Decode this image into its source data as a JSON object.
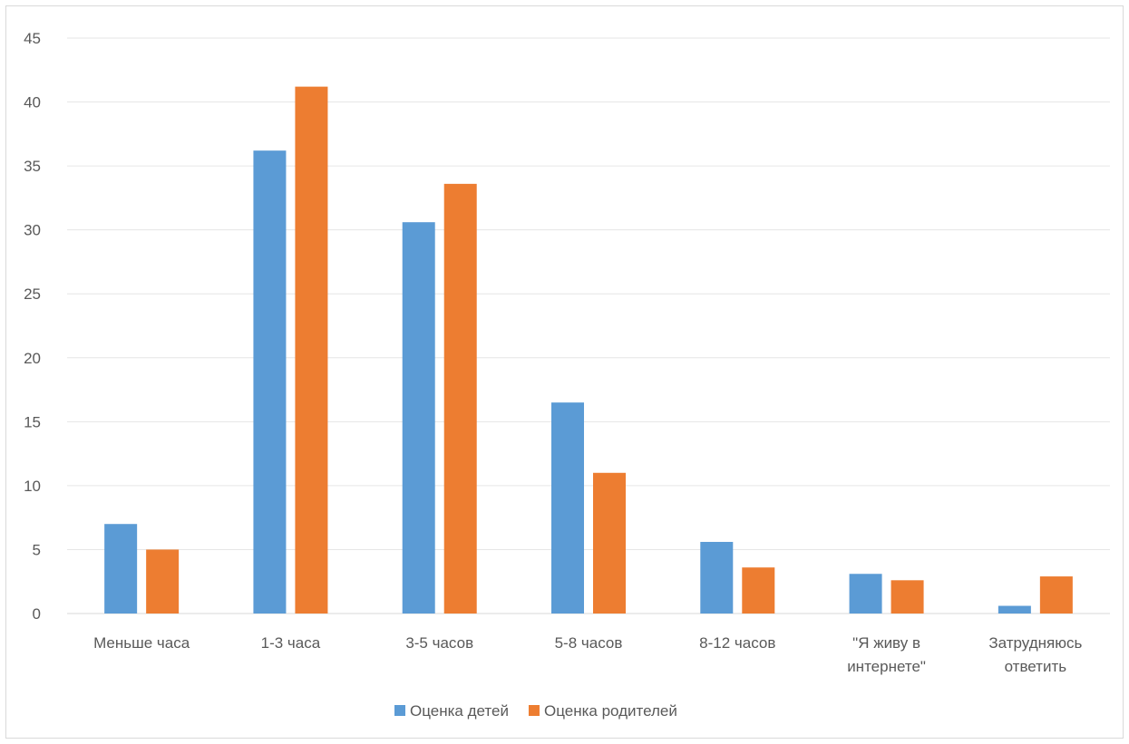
{
  "chart_data": {
    "type": "bar",
    "title": "",
    "xlabel": "",
    "ylabel": "",
    "categories": [
      [
        "Меньше часа"
      ],
      [
        "1-3 часа"
      ],
      [
        "3-5 часов"
      ],
      [
        "5-8 часов"
      ],
      [
        "8-12 часов"
      ],
      [
        "\"Я живу в",
        "интернете\""
      ],
      [
        "Затрудняюсь",
        "ответить"
      ]
    ],
    "series": [
      {
        "name": "Оценка детей",
        "color": "#5B9BD5",
        "values": [
          7.0,
          36.2,
          30.6,
          16.5,
          5.6,
          3.1,
          0.6
        ]
      },
      {
        "name": "Оценка родителей",
        "color": "#ED7D31",
        "values": [
          5.0,
          41.2,
          33.6,
          11.0,
          3.6,
          2.6,
          2.9
        ]
      }
    ],
    "ylim": [
      0,
      45
    ],
    "yticks": [
      0,
      5,
      10,
      15,
      20,
      25,
      30,
      35,
      40,
      45
    ],
    "grid": true,
    "legend": "bottom"
  }
}
